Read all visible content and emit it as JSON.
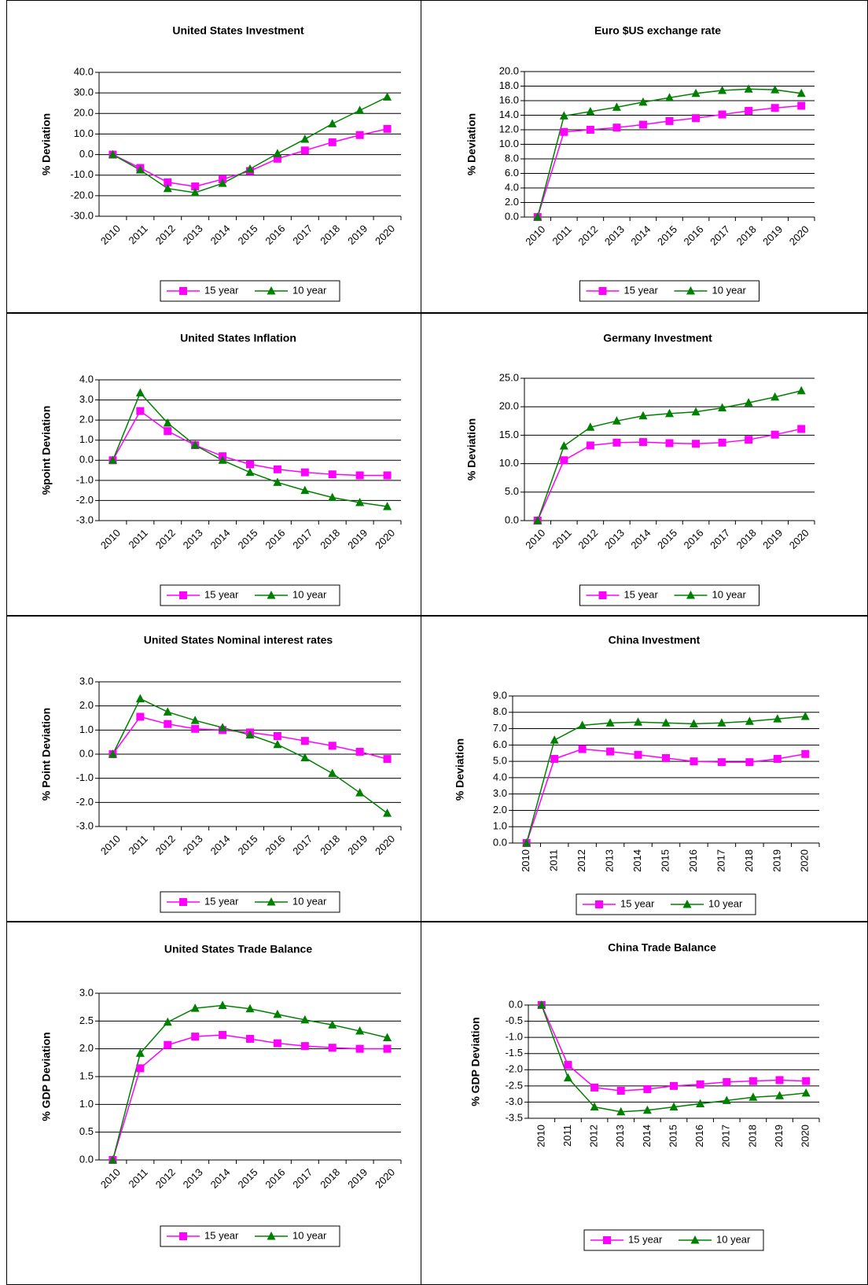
{
  "chart_data": [
    {
      "type": "line",
      "title": "United States  Investment",
      "ylabel": "% Deviation",
      "categories": [
        "2010",
        "2011",
        "2012",
        "2013",
        "2014",
        "2015",
        "2016",
        "2017",
        "2018",
        "2019",
        "2020"
      ],
      "series": [
        {
          "name": "15 year",
          "color": "#ff00ff",
          "marker": "square",
          "values": [
            0,
            -6.5,
            -13.5,
            -15.5,
            -12,
            -8,
            -2,
            2,
            6,
            9.5,
            12.5
          ]
        },
        {
          "name": "10 year",
          "color": "#008000",
          "marker": "triangle",
          "values": [
            0,
            -7.5,
            -16.5,
            -18.5,
            -14,
            -7,
            0.5,
            7.5,
            15,
            21.5,
            28
          ]
        }
      ],
      "ylim": [
        -30,
        40
      ],
      "yticks": [
        {
          "value": -30,
          "label": "-30.0"
        },
        {
          "value": -20,
          "label": "-20.0"
        },
        {
          "value": -10,
          "label": "-10.0"
        },
        {
          "value": 0,
          "label": "0.0"
        },
        {
          "value": 10,
          "label": "10.0"
        },
        {
          "value": 20,
          "label": "20.0"
        },
        {
          "value": 30,
          "label": "30.0"
        },
        {
          "value": 40,
          "label": "40.0"
        }
      ],
      "grid": true
    },
    {
      "type": "line",
      "title": "Euro $US  exchange rate",
      "ylabel": "% Deviation",
      "categories": [
        "2010",
        "2011",
        "2012",
        "2013",
        "2014",
        "2015",
        "2016",
        "2017",
        "2018",
        "2019",
        "2020"
      ],
      "series": [
        {
          "name": "15 year",
          "color": "#ff00ff",
          "marker": "square",
          "values": [
            0,
            11.7,
            12,
            12.3,
            12.7,
            13.2,
            13.6,
            14.1,
            14.6,
            15,
            15.3
          ]
        },
        {
          "name": "10 year",
          "color": "#008000",
          "marker": "triangle",
          "values": [
            0,
            13.9,
            14.5,
            15.1,
            15.8,
            16.4,
            17,
            17.4,
            17.6,
            17.5,
            17
          ]
        }
      ],
      "ylim": [
        0,
        20
      ],
      "yticks": [
        {
          "value": 0,
          "label": "0.0"
        },
        {
          "value": 2,
          "label": "2.0"
        },
        {
          "value": 4,
          "label": "4.0"
        },
        {
          "value": 6,
          "label": "6.0"
        },
        {
          "value": 8,
          "label": "8.0"
        },
        {
          "value": 10,
          "label": "10.0"
        },
        {
          "value": 12,
          "label": "12.0"
        },
        {
          "value": 14,
          "label": "14.0"
        },
        {
          "value": 16,
          "label": "16.0"
        },
        {
          "value": 18,
          "label": "18.0"
        },
        {
          "value": 20,
          "label": "20.0"
        }
      ],
      "grid": true
    },
    {
      "type": "line",
      "title": "United States  Inflation",
      "ylabel": "%point Deviation",
      "categories": [
        "2010",
        "2011",
        "2012",
        "2013",
        "2014",
        "2015",
        "2016",
        "2017",
        "2018",
        "2019",
        "2020"
      ],
      "series": [
        {
          "name": "15 year",
          "color": "#ff00ff",
          "marker": "square",
          "values": [
            0,
            2.45,
            1.45,
            0.75,
            0.2,
            -0.2,
            -0.45,
            -0.6,
            -0.7,
            -0.75,
            -0.75
          ]
        },
        {
          "name": "10 year",
          "color": "#008000",
          "marker": "triangle",
          "values": [
            0,
            3.35,
            1.85,
            0.75,
            0,
            -0.6,
            -1.1,
            -1.5,
            -1.85,
            -2.1,
            -2.3
          ]
        }
      ],
      "ylim": [
        -3,
        4
      ],
      "yticks": [
        {
          "value": -3,
          "label": "-3.0"
        },
        {
          "value": -2,
          "label": "-2.0"
        },
        {
          "value": -1,
          "label": "-1.0"
        },
        {
          "value": 0,
          "label": "0.0"
        },
        {
          "value": 1,
          "label": "1.0"
        },
        {
          "value": 2,
          "label": "2.0"
        },
        {
          "value": 3,
          "label": "3.0"
        },
        {
          "value": 4,
          "label": "4.0"
        }
      ],
      "grid": true
    },
    {
      "type": "line",
      "title": "Germany  Investment",
      "ylabel": "% Deviation",
      "categories": [
        "2010",
        "2011",
        "2012",
        "2013",
        "2014",
        "2015",
        "2016",
        "2017",
        "2018",
        "2019",
        "2020"
      ],
      "series": [
        {
          "name": "15 year",
          "color": "#ff00ff",
          "marker": "square",
          "values": [
            0,
            10.6,
            13.2,
            13.7,
            13.8,
            13.6,
            13.5,
            13.7,
            14.2,
            15.1,
            16.1
          ]
        },
        {
          "name": "10 year",
          "color": "#008000",
          "marker": "triangle",
          "values": [
            0,
            13.1,
            16.4,
            17.5,
            18.4,
            18.8,
            19.1,
            19.8,
            20.7,
            21.7,
            22.8
          ]
        }
      ],
      "ylim": [
        0,
        25
      ],
      "yticks": [
        {
          "value": 0,
          "label": "0.0"
        },
        {
          "value": 5,
          "label": "5.0"
        },
        {
          "value": 10,
          "label": "10.0"
        },
        {
          "value": 15,
          "label": "15.0"
        },
        {
          "value": 20,
          "label": "20.0"
        },
        {
          "value": 25,
          "label": "25.0"
        }
      ],
      "grid": true
    },
    {
      "type": "line",
      "title": "United States  Nominal interest rates",
      "ylabel": "% Point Deviation",
      "categories": [
        "2010",
        "2011",
        "2012",
        "2013",
        "2014",
        "2015",
        "2016",
        "2017",
        "2018",
        "2019",
        "2020"
      ],
      "series": [
        {
          "name": "15 year",
          "color": "#ff00ff",
          "marker": "square",
          "values": [
            0,
            1.55,
            1.25,
            1.05,
            1.0,
            0.9,
            0.75,
            0.55,
            0.35,
            0.1,
            -0.2
          ]
        },
        {
          "name": "10 year",
          "color": "#008000",
          "marker": "triangle",
          "values": [
            0,
            2.3,
            1.75,
            1.4,
            1.1,
            0.8,
            0.4,
            -0.15,
            -0.8,
            -1.6,
            -2.45
          ]
        }
      ],
      "ylim": [
        -3,
        3
      ],
      "yticks": [
        {
          "value": -3,
          "label": "-3.0"
        },
        {
          "value": -2,
          "label": "-2.0"
        },
        {
          "value": -1,
          "label": "-1.0"
        },
        {
          "value": 0,
          "label": "0.0"
        },
        {
          "value": 1,
          "label": "1.0"
        },
        {
          "value": 2,
          "label": "2.0"
        },
        {
          "value": 3,
          "label": "3.0"
        }
      ],
      "grid": true
    },
    {
      "type": "line",
      "title": "China  Investment",
      "ylabel": "% Deviation",
      "categories": [
        "2010",
        "2011",
        "2012",
        "2013",
        "2014",
        "2015",
        "2016",
        "2017",
        "2018",
        "2019",
        "2020"
      ],
      "series": [
        {
          "name": "15 year",
          "color": "#ff00ff",
          "marker": "square",
          "values": [
            0,
            5.15,
            5.75,
            5.6,
            5.4,
            5.2,
            5.0,
            4.95,
            4.95,
            5.15,
            5.45
          ]
        },
        {
          "name": "10 year",
          "color": "#008000",
          "marker": "triangle",
          "values": [
            0,
            6.3,
            7.2,
            7.35,
            7.4,
            7.35,
            7.3,
            7.35,
            7.45,
            7.6,
            7.75
          ]
        }
      ],
      "ylim": [
        0,
        9
      ],
      "yticks": [
        {
          "value": 0,
          "label": "0.0"
        },
        {
          "value": 1,
          "label": "1.0"
        },
        {
          "value": 2,
          "label": "2.0"
        },
        {
          "value": 3,
          "label": "3.0"
        },
        {
          "value": 4,
          "label": "4.0"
        },
        {
          "value": 5,
          "label": "5.0"
        },
        {
          "value": 6,
          "label": "6.0"
        },
        {
          "value": 7,
          "label": "7.0"
        },
        {
          "value": 8,
          "label": "8.0"
        },
        {
          "value": 9,
          "label": "9.0"
        }
      ],
      "grid": true
    },
    {
      "type": "line",
      "title": "United States  Trade Balance",
      "ylabel": "% GDP Deviation",
      "categories": [
        "2010",
        "2011",
        "2012",
        "2013",
        "2014",
        "2015",
        "2016",
        "2017",
        "2018",
        "2019",
        "2020"
      ],
      "series": [
        {
          "name": "15 year",
          "color": "#ff00ff",
          "marker": "square",
          "values": [
            0,
            1.65,
            2.07,
            2.22,
            2.25,
            2.18,
            2.1,
            2.05,
            2.02,
            2.0,
            2.0
          ]
        },
        {
          "name": "10 year",
          "color": "#008000",
          "marker": "triangle",
          "values": [
            0,
            1.92,
            2.48,
            2.73,
            2.78,
            2.72,
            2.62,
            2.52,
            2.43,
            2.32,
            2.2
          ]
        }
      ],
      "ylim": [
        0,
        3
      ],
      "yticks": [
        {
          "value": 0,
          "label": "0.0"
        },
        {
          "value": 0.5,
          "label": "0.5"
        },
        {
          "value": 1,
          "label": "1.0"
        },
        {
          "value": 1.5,
          "label": "1.5"
        },
        {
          "value": 2,
          "label": "2.0"
        },
        {
          "value": 2.5,
          "label": "2.5"
        },
        {
          "value": 3,
          "label": "3.0"
        }
      ],
      "grid": true
    },
    {
      "type": "line",
      "title": "China Trade Balance",
      "ylabel": "% GDP Deviation",
      "categories": [
        "2010",
        "2011",
        "2012",
        "2013",
        "2014",
        "2015",
        "2016",
        "2017",
        "2018",
        "2019",
        "2020"
      ],
      "series": [
        {
          "name": "15 year",
          "color": "#ff00ff",
          "marker": "square",
          "values": [
            0,
            -1.85,
            -2.55,
            -2.65,
            -2.6,
            -2.5,
            -2.45,
            -2.38,
            -2.35,
            -2.32,
            -2.35
          ]
        },
        {
          "name": "10 year",
          "color": "#008000",
          "marker": "triangle",
          "values": [
            0,
            -2.25,
            -3.15,
            -3.3,
            -3.25,
            -3.15,
            -3.05,
            -2.95,
            -2.85,
            -2.8,
            -2.72
          ]
        }
      ],
      "ylim": [
        -3.5,
        0
      ],
      "yticks": [
        {
          "value": -3.5,
          "label": "-3.5"
        },
        {
          "value": -3,
          "label": "-3.0"
        },
        {
          "value": -2.5,
          "label": "-2.5"
        },
        {
          "value": -2,
          "label": "-2.0"
        },
        {
          "value": -1.5,
          "label": "-1.5"
        },
        {
          "value": -1,
          "label": "-1.0"
        },
        {
          "value": -0.5,
          "label": "-0.5"
        },
        {
          "value": 0,
          "label": "0.0"
        }
      ],
      "grid": true
    }
  ]
}
